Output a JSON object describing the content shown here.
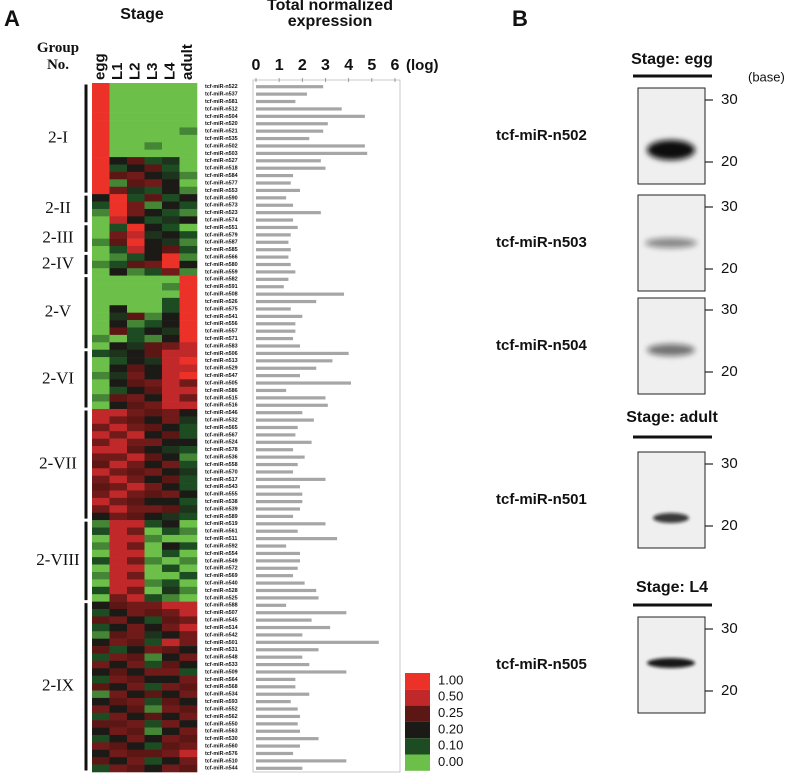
{
  "panel_labels": [
    "A",
    "B"
  ],
  "chart_data": [
    {
      "type": "heatmap",
      "title": "Stage",
      "group_header": "Group No.",
      "stages": [
        "egg",
        "L1",
        "L2",
        "L3",
        "L4",
        "adult"
      ],
      "legend": [
        {
          "value": 1,
          "label": "1.00",
          "color": "#ec3228"
        },
        {
          "value": 0.5,
          "label": "0.50",
          "color": "#c0282a"
        },
        {
          "value": 0.25,
          "label": "0.25",
          "color": "#5c1715"
        },
        {
          "value": 0.2,
          "label": "0.20",
          "color": "#1c1a16"
        },
        {
          "value": 0.1,
          "label": "0.10",
          "color": "#1d4b22"
        },
        {
          "value": 0,
          "label": "0.00",
          "color": "#6cc04a"
        }
      ],
      "groups": [
        {
          "label": "2-I",
          "values": [
            [
              1,
              0,
              0,
              0,
              0,
              0
            ],
            [
              1,
              0,
              0,
              0,
              0,
              0
            ],
            [
              1,
              0,
              0,
              0,
              0,
              0
            ],
            [
              1,
              0,
              0,
              0,
              0,
              0
            ],
            [
              1,
              0,
              0,
              0,
              0,
              0
            ],
            [
              1,
              0,
              0,
              0,
              0,
              0
            ],
            [
              1,
              0,
              0,
              0,
              0,
              0.05
            ],
            [
              1,
              0,
              0,
              0,
              0,
              0
            ],
            [
              1,
              0,
              0,
              0.05,
              0,
              0
            ],
            [
              1,
              0,
              0,
              0,
              0,
              0
            ],
            [
              1,
              0.2,
              0.25,
              0.1,
              0.15,
              0
            ],
            [
              1,
              0.1,
              0.2,
              0.25,
              0.1,
              0
            ],
            [
              1,
              0.25,
              0.3,
              0.2,
              0.15,
              0.05
            ],
            [
              1,
              0.05,
              0.25,
              0.3,
              0.2,
              0
            ],
            [
              1,
              0.3,
              0.15,
              0.1,
              0.2,
              0.05
            ]
          ]
        },
        {
          "label": "2-II",
          "values": [
            [
              0.2,
              1,
              0.1,
              0.25,
              0.1,
              0.2
            ],
            [
              0.1,
              1,
              0.3,
              0.05,
              0.2,
              0.1
            ],
            [
              0.05,
              1,
              0.3,
              0.2,
              0.1,
              0.05
            ],
            [
              0,
              0.5,
              0.2,
              0.1,
              0.15,
              0.2
            ]
          ]
        },
        {
          "label": "2-III",
          "values": [
            [
              0,
              0.1,
              1,
              0.2,
              0.1,
              0
            ],
            [
              0,
              0.3,
              0.5,
              0.15,
              0.2,
              0.1
            ],
            [
              0.05,
              0.25,
              1,
              0.2,
              0.15,
              0.05
            ],
            [
              0,
              0.1,
              0.5,
              0.2,
              0.25,
              0.1
            ]
          ]
        },
        {
          "label": "2-IV",
          "values": [
            [
              0,
              0.05,
              0.1,
              0.2,
              1,
              0.05
            ],
            [
              0.05,
              0.1,
              0.25,
              0.3,
              1,
              0.2
            ],
            [
              0,
              0.2,
              0.05,
              0.1,
              0.3,
              0.05
            ]
          ]
        },
        {
          "label": "2-V",
          "values": [
            [
              0,
              0,
              0,
              0,
              0,
              1
            ],
            [
              0,
              0,
              0,
              0,
              0.05,
              1
            ],
            [
              0,
              0,
              0,
              0,
              0,
              1
            ],
            [
              0,
              0,
              0,
              0,
              0.1,
              1
            ],
            [
              0,
              0.2,
              0,
              0,
              0.1,
              1
            ],
            [
              0,
              0.15,
              0.25,
              0.05,
              0.2,
              1
            ],
            [
              0,
              0.2,
              0.05,
              0.1,
              0.2,
              1
            ],
            [
              0,
              0.25,
              0.1,
              0.2,
              0.15,
              1
            ],
            [
              0.05,
              0,
              0.1,
              0.05,
              0.2,
              1
            ],
            [
              0,
              0.2,
              0.15,
              0.25,
              0.3,
              0.5
            ]
          ]
        },
        {
          "label": "2-VI",
          "values": [
            [
              0.1,
              0.15,
              0.2,
              0.25,
              0.5,
              0.5
            ],
            [
              0,
              0.1,
              0.2,
              0.15,
              0.5,
              1
            ],
            [
              0,
              0.2,
              0.25,
              0.2,
              0.5,
              0.5
            ],
            [
              0.05,
              0.15,
              0.3,
              0.2,
              0.5,
              1
            ],
            [
              0,
              0.2,
              0.25,
              0.3,
              0.5,
              0.3
            ],
            [
              0,
              0.1,
              0.2,
              0.25,
              0.5,
              0.5
            ],
            [
              0.05,
              0.25,
              0.3,
              0.2,
              0.5,
              0.3
            ],
            [
              0,
              0.2,
              0.25,
              0.3,
              0.5,
              0.5
            ]
          ]
        },
        {
          "label": "2-VII",
          "values": [
            [
              0.5,
              0.5,
              0.3,
              0.25,
              0.3,
              0.2
            ],
            [
              0.5,
              0.3,
              0.25,
              0.2,
              0.3,
              0.15
            ],
            [
              0.3,
              0.5,
              0.3,
              0.25,
              0.2,
              0.1
            ],
            [
              0.5,
              0.3,
              0.5,
              0.2,
              0.25,
              0.1
            ],
            [
              0.3,
              0.5,
              0.3,
              0.3,
              0.2,
              0.2
            ],
            [
              0.5,
              0.5,
              0.25,
              0.2,
              0.15,
              0.1
            ],
            [
              0.3,
              0.3,
              0.5,
              0.25,
              0.2,
              0.05
            ],
            [
              0.25,
              0.5,
              0.3,
              0.2,
              0.3,
              0.1
            ],
            [
              0.5,
              0.3,
              0.25,
              0.3,
              0.2,
              0.15
            ],
            [
              0.3,
              0.5,
              0.3,
              0.2,
              0.25,
              0.1
            ],
            [
              0.25,
              0.3,
              0.5,
              0.3,
              0.2,
              0.1
            ],
            [
              0.3,
              0.5,
              0.3,
              0.25,
              0.3,
              0.2
            ],
            [
              0.5,
              0.3,
              0.25,
              0.2,
              0.2,
              0.1
            ],
            [
              0.3,
              0.5,
              0.3,
              0.3,
              0.25,
              0.15
            ],
            [
              0.2,
              0.3,
              0.25,
              0.2,
              0.15,
              0.1
            ]
          ]
        },
        {
          "label": "2-VIII",
          "values": [
            [
              0.05,
              0.5,
              0.5,
              0.1,
              0.2,
              0
            ],
            [
              0.1,
              0.5,
              0.3,
              0,
              0.1,
              0.05
            ],
            [
              0,
              0.5,
              0.5,
              0.05,
              0,
              0
            ],
            [
              0.05,
              0.5,
              0.3,
              0,
              0.2,
              0.1
            ],
            [
              0,
              0.5,
              0.5,
              0,
              0.1,
              0
            ],
            [
              0.1,
              0.5,
              0.3,
              0.05,
              0,
              0.05
            ],
            [
              0,
              0.5,
              0.5,
              0,
              0.1,
              0
            ],
            [
              0.05,
              0.5,
              0.3,
              0,
              0,
              0.1
            ],
            [
              0,
              0.5,
              0.5,
              0.05,
              0.1,
              0
            ],
            [
              0.1,
              0.5,
              0.3,
              0,
              0.15,
              0.05
            ],
            [
              0,
              0.3,
              0.5,
              0.1,
              0.05,
              0
            ]
          ]
        },
        {
          "label": "2-IX",
          "values": [
            [
              0.2,
              0.25,
              0.3,
              0.3,
              0.5,
              0.5
            ],
            [
              0.1,
              0.2,
              0.3,
              0.25,
              0.3,
              0.5
            ],
            [
              0.25,
              0.3,
              0.2,
              0.1,
              0.25,
              0.3
            ],
            [
              0.1,
              0.2,
              0.3,
              0.2,
              0.3,
              0.5
            ],
            [
              0.05,
              0.25,
              0.3,
              0.15,
              0.2,
              0.3
            ],
            [
              0.2,
              0.3,
              0.25,
              0.1,
              0.5,
              0.3
            ],
            [
              0.25,
              0.1,
              0.2,
              0.3,
              0.25,
              0.2
            ],
            [
              0.1,
              0.3,
              0.25,
              0.05,
              0.2,
              0.3
            ],
            [
              0.3,
              0.2,
              0.3,
              0.1,
              0.25,
              0.2
            ],
            [
              0.2,
              0.25,
              0.2,
              0.3,
              0.3,
              0.1
            ],
            [
              0.1,
              0.3,
              0.25,
              0.2,
              0.2,
              0.3
            ],
            [
              0.25,
              0.2,
              0.3,
              0.1,
              0.3,
              0.25
            ],
            [
              0.05,
              0.3,
              0.2,
              0.25,
              0.2,
              0.3
            ],
            [
              0.2,
              0.25,
              0.3,
              0.1,
              0.25,
              0.2
            ],
            [
              0.3,
              0.2,
              0.25,
              0.05,
              0.3,
              0.25
            ],
            [
              0.1,
              0.3,
              0.2,
              0.25,
              0.2,
              0.3
            ],
            [
              0.25,
              0.25,
              0.3,
              0.1,
              0.3,
              0.2
            ],
            [
              0.2,
              0.3,
              0.25,
              0.05,
              0.2,
              0.3
            ],
            [
              0.1,
              0.2,
              0.3,
              0.2,
              0.3,
              0.25
            ],
            [
              0.3,
              0.25,
              0.2,
              0.1,
              0.25,
              0.3
            ],
            [
              0.2,
              0.3,
              0.25,
              0.25,
              0.3,
              0.5
            ],
            [
              0.25,
              0.2,
              0.3,
              0.1,
              0.2,
              0.3
            ],
            [
              0.1,
              0.3,
              0.25,
              0.2,
              0.3,
              0.25
            ]
          ]
        }
      ]
    },
    {
      "type": "bar",
      "title": "Total normalized expression",
      "axis_unit": "(log)",
      "color": "#a6a6a6",
      "xlim": [
        0,
        6
      ],
      "xticks": [
        0,
        1,
        2,
        3,
        4,
        5,
        6
      ],
      "categories": [
        "tcf-miR-n522",
        "tcf-miR-n537",
        "tcf-miR-n581",
        "tcf-miR-n512",
        "tcf-miR-n504",
        "tcf-miR-n520",
        "tcf-miR-n521",
        "tcf-miR-n535",
        "tcf-miR-n502",
        "tcf-miR-n503",
        "tcf-miR-n527",
        "tcf-miR-n518",
        "tcf-miR-n584",
        "tcf-miR-n577",
        "tcf-miR-n553",
        "tcf-miR-n590",
        "tcf-miR-n573",
        "tcf-miR-n523",
        "tcf-miR-n574",
        "tcf-miR-n551",
        "tcf-miR-n579",
        "tcf-miR-n587",
        "tcf-miR-n585",
        "tcf-miR-n566",
        "tcf-miR-n580",
        "tcf-miR-n559",
        "tcf-miR-n582",
        "tcf-miR-n591",
        "tcf-miR-n508",
        "tcf-miR-n526",
        "tcf-miR-n575",
        "tcf-miR-n541",
        "tcf-miR-n556",
        "tcf-miR-n557",
        "tcf-miR-n571",
        "tcf-miR-n583",
        "tcf-miR-n506",
        "tcf-miR-n513",
        "tcf-miR-n529",
        "tcf-miR-n547",
        "tcf-miR-n505",
        "tcf-miR-n586",
        "tcf-miR-n515",
        "tcf-miR-n516",
        "tcf-miR-n546",
        "tcf-miR-n532",
        "tcf-miR-n565",
        "tcf-miR-n567",
        "tcf-miR-n524",
        "tcf-miR-n578",
        "tcf-miR-n536",
        "tcf-miR-n558",
        "tcf-miR-n570",
        "tcf-miR-n517",
        "tcf-miR-n543",
        "tcf-miR-n555",
        "tcf-miR-n538",
        "tcf-miR-n539",
        "tcf-miR-n589",
        "tcf-miR-n519",
        "tcf-miR-n561",
        "tcf-miR-n511",
        "tcf-miR-n592",
        "tcf-miR-n554",
        "tcf-miR-n549",
        "tcf-miR-n572",
        "tcf-miR-n569",
        "tcf-miR-n540",
        "tcf-miR-n528",
        "tcf-miR-n525",
        "tcf-miR-n588",
        "tcf-miR-n507",
        "tcf-miR-n545",
        "tcf-miR-n514",
        "tcf-miR-n542",
        "tcf-miR-n501",
        "tcf-miR-n531",
        "tcf-miR-n548",
        "tcf-miR-n533",
        "tcf-miR-n509",
        "tcf-miR-n564",
        "tcf-miR-n568",
        "tcf-miR-n534",
        "tcf-miR-n593",
        "tcf-miR-n552",
        "tcf-miR-n562",
        "tcf-miR-n550",
        "tcf-miR-n563",
        "tcf-miR-n530",
        "tcf-miR-n560",
        "tcf-miR-n576",
        "tcf-miR-n510",
        "tcf-miR-n544"
      ],
      "values": [
        2.9,
        2.2,
        1.7,
        3.7,
        4.7,
        3.1,
        2.9,
        2.3,
        4.7,
        4.8,
        2.8,
        3.0,
        1.6,
        1.5,
        1.9,
        1.3,
        1.6,
        2.8,
        1.6,
        1.8,
        1.5,
        1.4,
        1.5,
        1.4,
        1.5,
        1.7,
        1.4,
        1.2,
        3.8,
        2.6,
        1.5,
        2.0,
        1.7,
        1.7,
        1.6,
        1.9,
        4.0,
        3.3,
        2.6,
        1.9,
        4.1,
        1.3,
        3.0,
        3.1,
        2.0,
        2.5,
        1.8,
        1.7,
        2.4,
        1.6,
        2.1,
        1.8,
        1.6,
        3.0,
        1.9,
        2.0,
        2.0,
        1.9,
        1.6,
        3.0,
        1.8,
        3.5,
        1.3,
        1.9,
        1.9,
        1.8,
        1.6,
        2.1,
        2.6,
        2.7,
        1.3,
        3.9,
        2.4,
        3.2,
        2.0,
        5.3,
        2.7,
        2.0,
        2.3,
        3.9,
        1.7,
        1.7,
        2.3,
        1.5,
        1.8,
        1.9,
        1.8,
        1.9,
        2.7,
        1.9,
        1.6,
        3.9,
        2.0
      ]
    }
  ],
  "panel_b": {
    "unit": "(base)",
    "sections": [
      {
        "title": "Stage: egg",
        "blots": [
          {
            "name": "tcf-miR-n502",
            "markers": [
              30,
              20
            ]
          },
          {
            "name": "tcf-miR-n503",
            "markers": [
              30,
              20
            ]
          },
          {
            "name": "tcf-miR-n504",
            "markers": [
              30,
              20
            ]
          }
        ]
      },
      {
        "title": "Stage: adult",
        "blots": [
          {
            "name": "tcf-miR-n501",
            "markers": [
              30,
              20
            ]
          }
        ]
      },
      {
        "title": "Stage: L4",
        "blots": [
          {
            "name": "tcf-miR-n505",
            "markers": [
              30,
              20
            ]
          }
        ]
      }
    ]
  }
}
